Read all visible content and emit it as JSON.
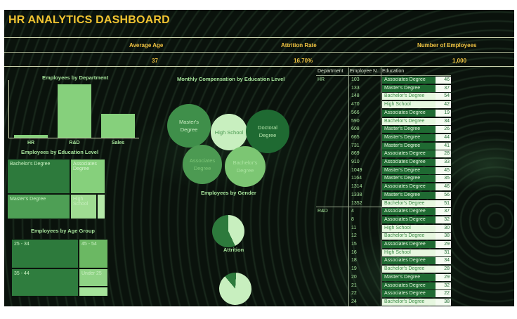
{
  "title": "HR ANALYTICS DASHBOARD",
  "kpis": [
    {
      "label": "Average Age",
      "value": "37"
    },
    {
      "label": "Attrition Rate",
      "value": "16.70%"
    },
    {
      "label": "Number of Employees",
      "value": "1,000"
    }
  ],
  "dept_chart": {
    "title": "Employees by Department",
    "categories": [
      "HR",
      "R&D",
      "Sales"
    ],
    "values": [
      4,
      74,
      33
    ]
  },
  "education_treemap": {
    "title": "Employees by Education Level",
    "cells": [
      "Bachelor's Degree",
      "Associates Degree",
      "Master's Degree",
      "High School"
    ]
  },
  "age_treemap": {
    "title": "Employees by Age Group",
    "cells": [
      "25 - 34",
      "45 - 54",
      "35 - 44",
      "Under 25"
    ]
  },
  "comp_bubbles": {
    "title": "Monthly Compensation by Education Level",
    "bubbles": [
      "Master's Degree",
      "High School",
      "Doctoral Degree",
      "Associates Degree",
      "Bachelor's Degree"
    ]
  },
  "gender": {
    "title": "Employees by Gender",
    "share": 0.43
  },
  "attrition": {
    "title": "Attrition",
    "share": 0.12
  },
  "table": {
    "headers": [
      "Department",
      "Employee N...",
      "Education"
    ],
    "rows": [
      {
        "dept": "HR",
        "id": "103",
        "edu": "Associates Degree",
        "val": "46"
      },
      {
        "dept": "",
        "id": "133",
        "edu": "Master's Degree",
        "val": "37"
      },
      {
        "dept": "",
        "id": "148",
        "edu": "Bachelor's Degree",
        "val": "54"
      },
      {
        "dept": "",
        "id": "470",
        "edu": "High School",
        "val": "42"
      },
      {
        "dept": "",
        "id": "566",
        "edu": "Associates Degree",
        "val": "19"
      },
      {
        "dept": "",
        "id": "590",
        "edu": "Bachelor's Degree",
        "val": "34"
      },
      {
        "dept": "",
        "id": "608",
        "edu": "Master's Degree",
        "val": "26"
      },
      {
        "dept": "",
        "id": "665",
        "edu": "Master's Degree",
        "val": "44"
      },
      {
        "dept": "",
        "id": "731",
        "edu": "Master's Degree",
        "val": "41"
      },
      {
        "dept": "",
        "id": "869",
        "edu": "Associates Degree",
        "val": "28"
      },
      {
        "dept": "",
        "id": "910",
        "edu": "Associates Degree",
        "val": "33"
      },
      {
        "dept": "",
        "id": "1049",
        "edu": "Master's Degree",
        "val": "45"
      },
      {
        "dept": "",
        "id": "1164",
        "edu": "Master's Degree",
        "val": "35"
      },
      {
        "dept": "",
        "id": "1314",
        "edu": "Associates Degree",
        "val": "46"
      },
      {
        "dept": "",
        "id": "1338",
        "edu": "Master's Degree",
        "val": "56"
      },
      {
        "dept": "",
        "id": "1352",
        "edu": "Bachelor's Degree",
        "val": "51"
      },
      {
        "dept": "R&D",
        "id": "4",
        "edu": "Associates Degree",
        "val": "37"
      },
      {
        "dept": "",
        "id": "8",
        "edu": "Associates Degree",
        "val": "32"
      },
      {
        "dept": "",
        "id": "11",
        "edu": "High School",
        "val": "30"
      },
      {
        "dept": "",
        "id": "12",
        "edu": "Bachelor's Degree",
        "val": "38"
      },
      {
        "dept": "",
        "id": "15",
        "edu": "Associates Degree",
        "val": "29"
      },
      {
        "dept": "",
        "id": "16",
        "edu": "High School",
        "val": "31"
      },
      {
        "dept": "",
        "id": "18",
        "edu": "Associates Degree",
        "val": "34"
      },
      {
        "dept": "",
        "id": "19",
        "edu": "Bachelor's Degree",
        "val": "28"
      },
      {
        "dept": "",
        "id": "20",
        "edu": "Master's Degree",
        "val": "29"
      },
      {
        "dept": "",
        "id": "21",
        "edu": "Associates Degree",
        "val": "32"
      },
      {
        "dept": "",
        "id": "22",
        "edu": "Associates Degree",
        "val": "22"
      },
      {
        "dept": "",
        "id": "24",
        "edu": "Bachelor's Degree",
        "val": "38"
      }
    ]
  },
  "colors": {
    "accent": "#f0c331",
    "green_light": "#86d07c",
    "green_dark": "#1f6a32",
    "green_mid": "#3f8f4a"
  }
}
